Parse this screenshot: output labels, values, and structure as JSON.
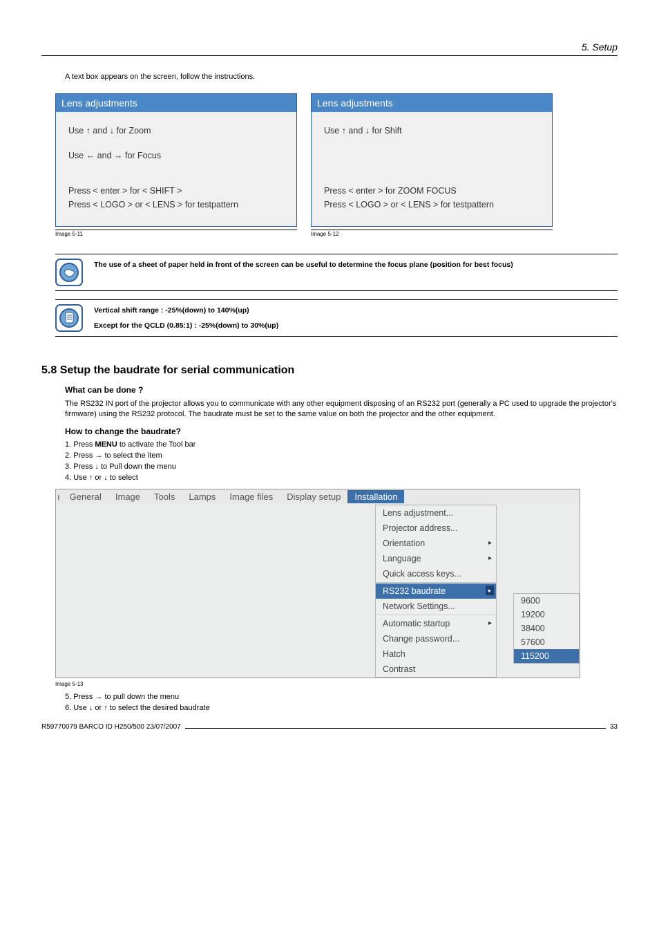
{
  "header": {
    "section": "5.  Setup"
  },
  "intro": "A text box appears on the screen, follow the instructions.",
  "panels": {
    "left": {
      "title": "Lens adjustments",
      "line1": "Use ↑ and ↓ for Zoom",
      "line2": "Use ← and → for Focus",
      "line3": "Press < enter > for < SHIFT >",
      "line4": "Press < LOGO > or < LENS > for testpattern",
      "caption": "Image 5-11"
    },
    "right": {
      "title": "Lens adjustments",
      "line1": "Use ↑ and ↓ for Shift",
      "line3": "Press < enter > for ZOOM FOCUS",
      "line4": "Press < LOGO > or < LENS > for testpattern",
      "caption": "Image 5-12"
    }
  },
  "note1": "The use of a sheet of paper held in front of the screen can be useful to determine the focus plane (position for best focus)",
  "note2a": "Vertical shift range :  -25%(down) to 140%(up)",
  "note2b": "Except for the QCLD (0.85:1) :  -25%(down) to 30%(up)",
  "section": {
    "num_title": "5.8   Setup the baudrate for serial communication",
    "q1": "What can be done ?",
    "p1": "The RS232 IN port of the projector allows you to communicate with any other equipment disposing of an RS232 port (generally a PC used to upgrade the projector's firmware) using the RS232 protocol.  The baudrate must be set to the same value on both the projector and the other equipment.",
    "q2": "How to change the baudrate?",
    "steps": [
      "Press MENU to activate the Tool bar",
      "Press → to select the                    item",
      "Press ↓ to Pull down the                    menu",
      "Use ↑ or ↓ to select"
    ],
    "steps56": [
      "Press → to pull down the menu",
      "Use ↓ or ↑ to select the desired baudrate"
    ],
    "img_caption": "Image 5-13"
  },
  "menu": {
    "truncated": "ı",
    "items": [
      "General",
      "Image",
      "Tools",
      "Lamps",
      "Image files",
      "Display setup",
      "Installation"
    ],
    "selected_index": 6,
    "dropdown": [
      {
        "label": "Lens adjustment...",
        "arrow": false
      },
      {
        "label": "Projector address...",
        "arrow": false
      },
      {
        "label": "Orientation",
        "arrow": true
      },
      {
        "label": "Language",
        "arrow": true
      },
      {
        "label": "Quick access keys...",
        "arrow": false
      },
      {
        "label": "RS232 baudrate",
        "arrow": true,
        "selected": true,
        "sep_before": true
      },
      {
        "label": "Network Settings...",
        "arrow": false
      },
      {
        "label": "Automatic startup",
        "arrow": true,
        "sep_before": true
      },
      {
        "label": "Change password...",
        "arrow": false
      },
      {
        "label": "Hatch",
        "arrow": false
      },
      {
        "label": "Contrast",
        "arrow": false
      }
    ],
    "submenu": [
      "9600",
      "19200",
      "38400",
      "57600",
      "115200"
    ],
    "submenu_selected": 4
  },
  "footer": {
    "left": "R59770079  BARCO ID H250/500  23/07/2007",
    "page": "33"
  },
  "colors": {
    "panel_header_bg": "#4a87c7",
    "panel_border": "#2a5aa0",
    "menu_sel_bg": "#3d6fa8",
    "icon_ring": "#2f5f9e",
    "icon_fill": "#6fa6d6"
  }
}
